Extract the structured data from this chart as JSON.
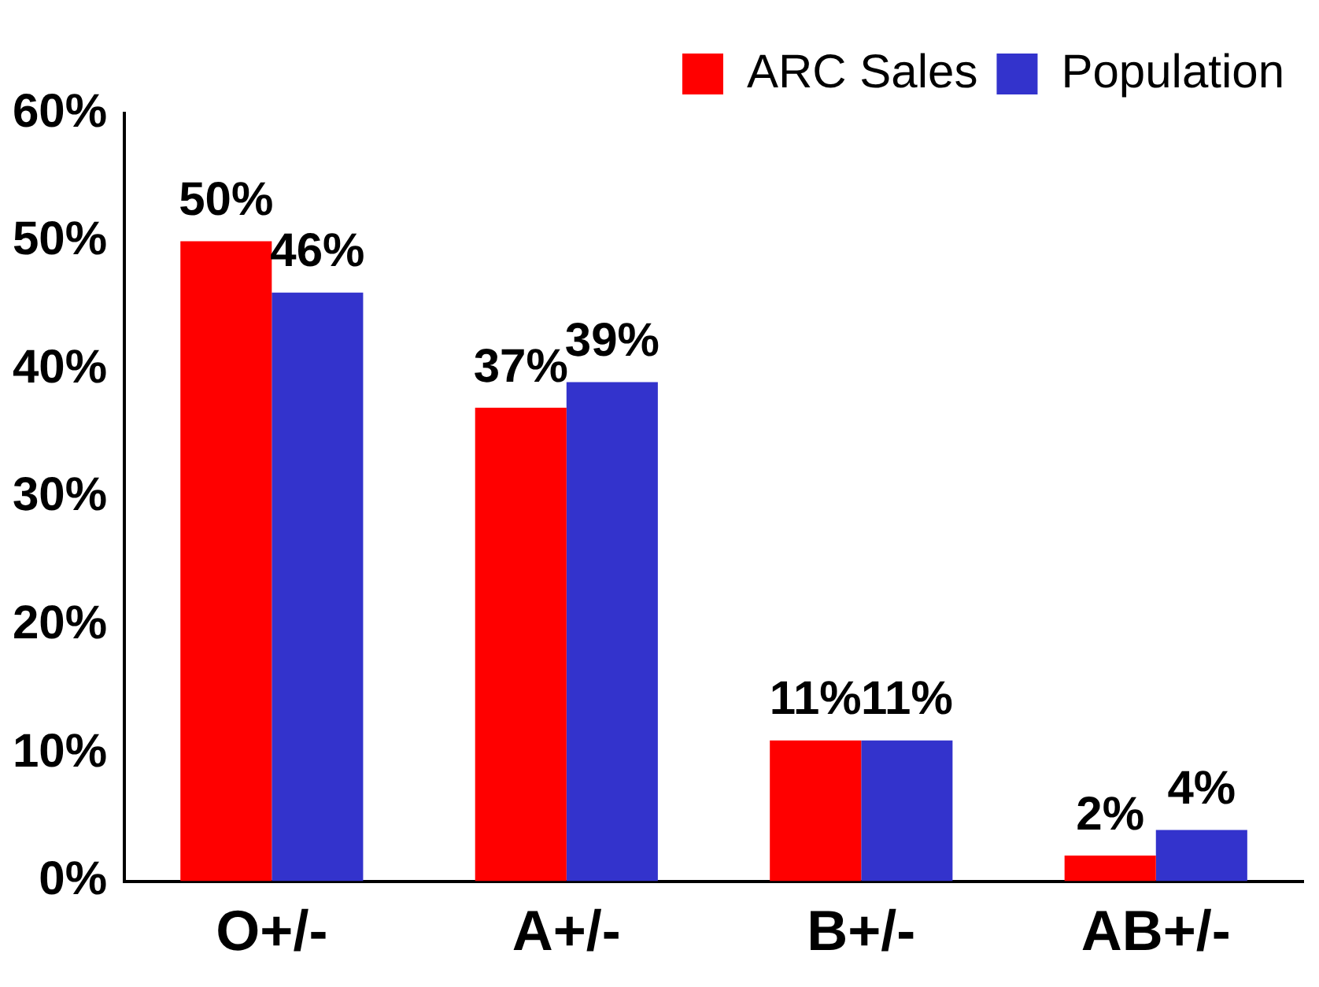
{
  "chart_data": {
    "type": "bar",
    "categories": [
      "O+/-",
      "A+/-",
      "B+/-",
      "AB+/-"
    ],
    "series": [
      {
        "name": "ARC Sales",
        "color": "#ff0000",
        "values": [
          50,
          37,
          11,
          2
        ],
        "value_labels": [
          "50%",
          "37%",
          "11%",
          "2%"
        ]
      },
      {
        "name": "Population",
        "color": "#3333cc",
        "values": [
          46,
          39,
          11,
          4
        ],
        "value_labels": [
          "46%",
          "39%",
          "11%",
          "4%"
        ]
      }
    ],
    "ylim": [
      0,
      60
    ],
    "yticks": [
      {
        "value": 0,
        "label": "0%"
      },
      {
        "value": 10,
        "label": "10%"
      },
      {
        "value": 20,
        "label": "20%"
      },
      {
        "value": 30,
        "label": "30%"
      },
      {
        "value": 40,
        "label": "40%"
      },
      {
        "value": 50,
        "label": "50%"
      },
      {
        "value": 60,
        "label": "60%"
      }
    ],
    "grid": false,
    "legend": "top right"
  }
}
